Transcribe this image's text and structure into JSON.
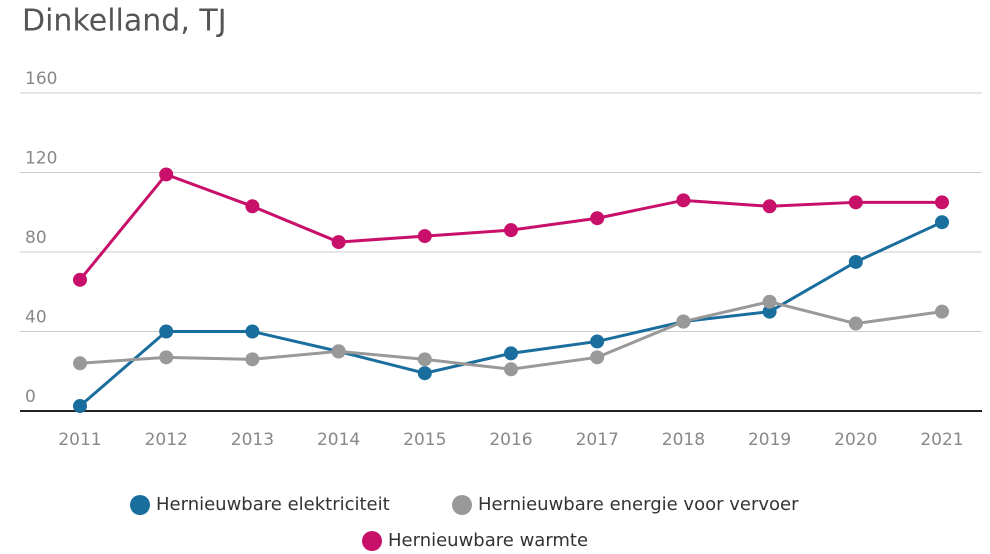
{
  "chart_data": {
    "type": "line",
    "title": "Dinkelland, TJ",
    "categories": [
      "2011",
      "2012",
      "2013",
      "2014",
      "2015",
      "2016",
      "2017",
      "2018",
      "2019",
      "2020",
      "2021"
    ],
    "series": [
      {
        "name": "Hernieuwbare elektriciteit",
        "color": "#1a6e9e",
        "values": [
          2.5,
          40,
          40,
          30,
          19,
          29,
          35,
          45,
          50,
          75,
          95
        ]
      },
      {
        "name": "Hernieuwbare energie voor vervoer",
        "color": "#999999",
        "values": [
          24,
          27,
          26,
          30,
          26,
          21,
          27,
          45,
          55,
          44,
          50
        ]
      },
      {
        "name": "Hernieuwbare warmte",
        "color": "#c8106a",
        "values": [
          66,
          119,
          103,
          85,
          88,
          91,
          97,
          106,
          103,
          105,
          105
        ]
      }
    ],
    "ylim": [
      0,
      160
    ],
    "yticks": [
      0,
      40,
      80,
      120,
      160
    ],
    "grid": true
  }
}
